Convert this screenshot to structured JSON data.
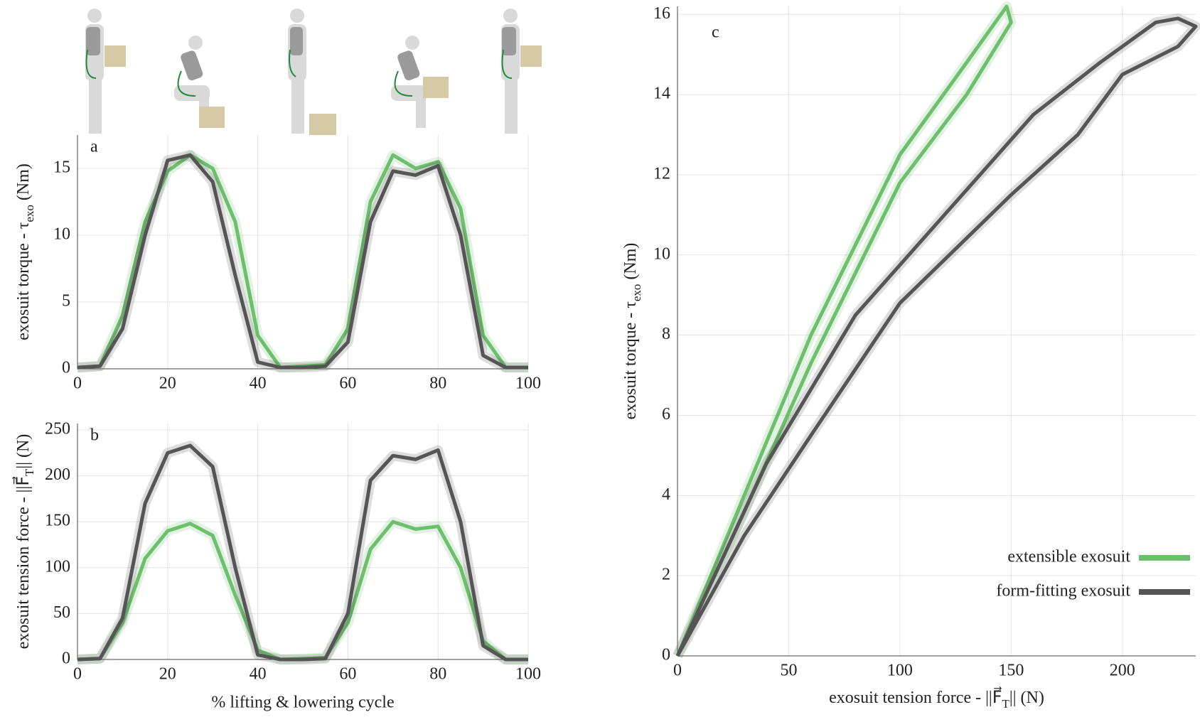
{
  "chart_data": [
    {
      "type": "line",
      "panel": "a",
      "ylabel": [
        "exosuit torque - τ",
        "exo",
        " (Nm)"
      ],
      "x": [
        0,
        5,
        10,
        15,
        20,
        25,
        30,
        35,
        40,
        45,
        50,
        55,
        60,
        65,
        70,
        75,
        80,
        85,
        90,
        95,
        100
      ],
      "xlim": [
        0,
        100
      ],
      "xticks": [
        0,
        20,
        40,
        60,
        80,
        100
      ],
      "ylim": [
        0,
        17.5
      ],
      "yticks": [
        0,
        5,
        10,
        15
      ],
      "grid": true,
      "series": [
        {
          "name": "extensible exosuit",
          "color": "#6dbf6d",
          "values": [
            0.1,
            0.2,
            4,
            11,
            14.8,
            16,
            15,
            11,
            2.5,
            0.1,
            0.2,
            0.3,
            3,
            12.5,
            16,
            15,
            15.5,
            12,
            2.5,
            0.1,
            0.1
          ]
        },
        {
          "name": "form-fitting exosuit",
          "color": "#555555",
          "values": [
            0.1,
            0.2,
            3,
            10,
            15.6,
            16,
            14,
            7,
            0.5,
            0.1,
            0.1,
            0.2,
            2,
            11,
            14.8,
            14.5,
            15.2,
            10,
            1,
            0.1,
            0.1
          ]
        }
      ]
    },
    {
      "type": "line",
      "panel": "b",
      "ylabel": [
        "exosuit tension force - ||F⃗",
        "T",
        "|| (N)"
      ],
      "xlabel": "% lifting & lowering cycle",
      "x": [
        0,
        5,
        10,
        15,
        20,
        25,
        30,
        35,
        40,
        45,
        50,
        55,
        60,
        65,
        70,
        75,
        80,
        85,
        90,
        95,
        100
      ],
      "xlim": [
        0,
        100
      ],
      "xticks": [
        0,
        20,
        40,
        60,
        80,
        100
      ],
      "ylim": [
        0,
        257
      ],
      "yticks": [
        0,
        50,
        100,
        150,
        200,
        250
      ],
      "grid": true,
      "series": [
        {
          "name": "extensible exosuit",
          "color": "#6dbf6d",
          "values": [
            0,
            1,
            40,
            110,
            140,
            148,
            135,
            70,
            10,
            0,
            1,
            2,
            40,
            120,
            150,
            142,
            145,
            100,
            20,
            0,
            0
          ]
        },
        {
          "name": "form-fitting exosuit",
          "color": "#555555",
          "values": [
            0,
            1,
            45,
            170,
            225,
            233,
            210,
            100,
            5,
            0,
            0,
            1,
            50,
            195,
            222,
            218,
            228,
            150,
            15,
            0,
            0
          ]
        }
      ]
    },
    {
      "type": "line",
      "panel": "c",
      "ylabel": [
        "exosuit torque - τ",
        "exo",
        " (Nm)"
      ],
      "xlabel": [
        "exosuit tension force - ||F⃗",
        "T",
        "|| (N)"
      ],
      "xlim": [
        0,
        233
      ],
      "xticks": [
        0,
        50,
        100,
        150,
        200
      ],
      "ylim": [
        0,
        16.2
      ],
      "yticks": [
        0,
        2,
        4,
        6,
        8,
        10,
        12,
        14,
        16
      ],
      "grid": true,
      "legend": "lower right",
      "series": [
        {
          "name": "extensible exosuit",
          "color": "#6dbf6d",
          "x": [
            0,
            30,
            60,
            100,
            130,
            148,
            150,
            130,
            100,
            60,
            30,
            0
          ],
          "values": [
            0,
            4,
            8,
            12.5,
            14.8,
            16.2,
            15.8,
            14,
            11.8,
            7.3,
            3.6,
            0
          ]
        },
        {
          "name": "form-fitting exosuit",
          "color": "#555555",
          "x": [
            0,
            40,
            80,
            120,
            160,
            190,
            215,
            225,
            233,
            225,
            200,
            180,
            150,
            100,
            60,
            30,
            0
          ],
          "values": [
            0,
            4.8,
            8.5,
            11,
            13.5,
            14.8,
            15.8,
            15.9,
            15.7,
            15.2,
            14.5,
            13,
            11.5,
            8.8,
            5.5,
            3,
            0
          ]
        }
      ]
    }
  ]
}
